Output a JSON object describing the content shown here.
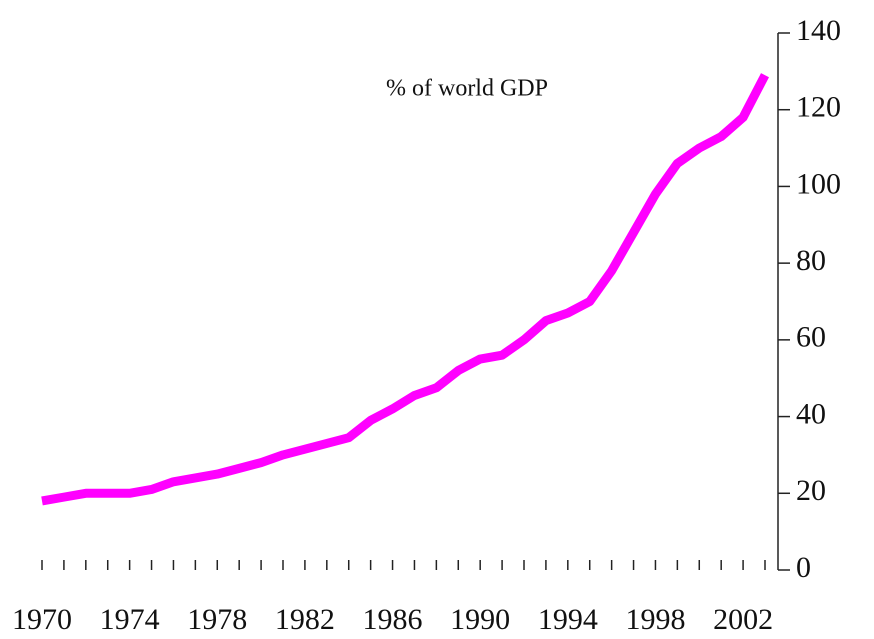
{
  "chart_data": {
    "type": "line",
    "annotation": "% of world GDP",
    "x": [
      1970,
      1971,
      1972,
      1973,
      1974,
      1975,
      1976,
      1977,
      1978,
      1979,
      1980,
      1981,
      1982,
      1983,
      1984,
      1985,
      1986,
      1987,
      1988,
      1989,
      1990,
      1991,
      1992,
      1993,
      1994,
      1995,
      1996,
      1997,
      1998,
      1999,
      2000,
      2001,
      2002,
      2003
    ],
    "series": [
      {
        "color": "#ff00ff",
        "values": [
          18,
          19,
          20,
          20,
          20,
          21,
          23,
          24,
          25,
          26.5,
          28,
          30,
          31.5,
          33,
          34.5,
          39,
          42,
          45.5,
          47.5,
          52,
          55,
          56,
          60,
          65,
          67,
          70,
          78,
          88,
          98,
          106,
          110,
          113,
          118,
          129
        ]
      }
    ],
    "xlim": [
      1970,
      2003
    ],
    "xticks": [
      1970,
      1974,
      1978,
      1982,
      1986,
      1990,
      1994,
      1998,
      2002
    ],
    "ylim": [
      0,
      140
    ],
    "yticks": [
      0,
      20,
      40,
      60,
      80,
      100,
      120,
      140
    ],
    "yaxis_side": "right"
  }
}
